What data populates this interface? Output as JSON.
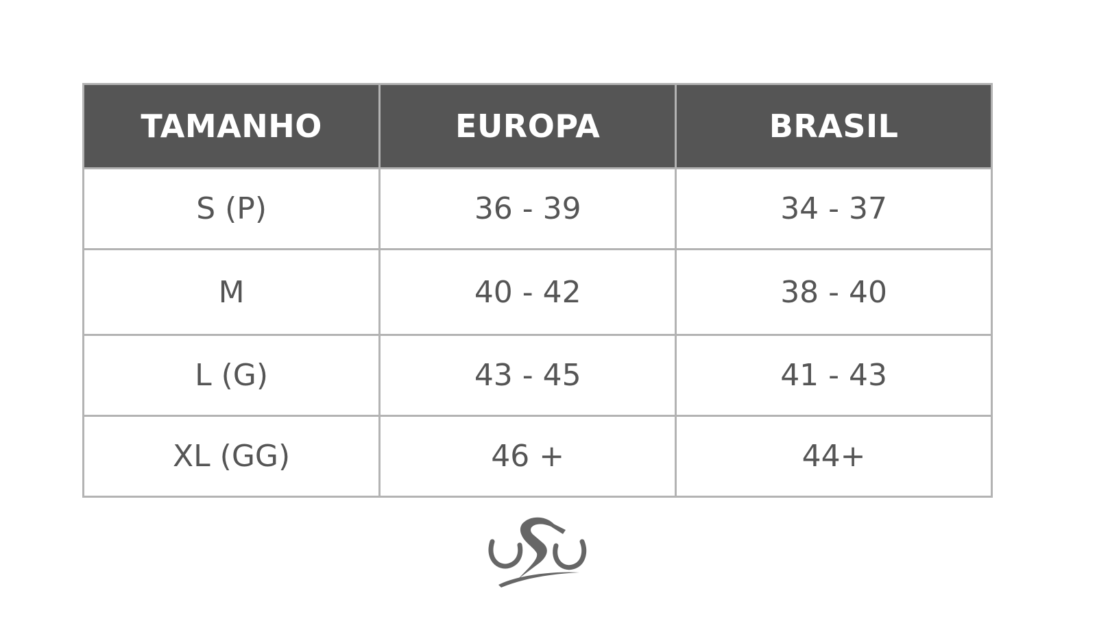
{
  "table": {
    "headers": [
      "TAMANHO",
      "EUROPA",
      "BRASIL"
    ],
    "rows": [
      [
        "S (P)",
        "36 - 39",
        "34 - 37"
      ],
      [
        "M",
        "40 - 42",
        "38 - 40"
      ],
      [
        "L (G)",
        "43 - 45",
        "41 - 43"
      ],
      [
        "XL (GG)",
        "46 +",
        "44+"
      ]
    ]
  },
  "colors": {
    "header_bg": "#555555",
    "border": "#b3b3b3",
    "text": "#555555"
  },
  "logo": {
    "icon": "cyclist-logo-icon"
  }
}
